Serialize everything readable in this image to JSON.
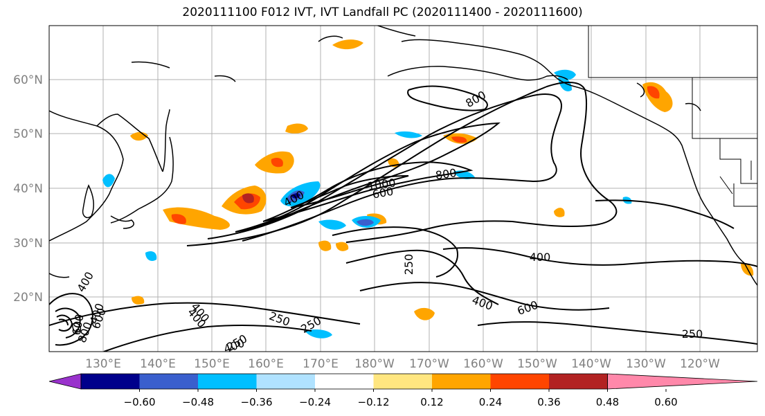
{
  "title": "2020111100 F012 IVT, IVT Landfall PC (2020111400 - 2020111600)",
  "axes": {
    "lat_labels": [
      "60°N",
      "50°N",
      "40°N",
      "30°N",
      "20°N"
    ],
    "lon_labels": [
      "130°E",
      "140°E",
      "150°E",
      "160°E",
      "170°E",
      "180°W",
      "170°W",
      "160°W",
      "150°W",
      "140°W",
      "130°W",
      "120°W"
    ],
    "tick_label_color": "#808080",
    "grid": true
  },
  "colorbar": {
    "tick_labels": [
      "−0.60",
      "−0.48",
      "−0.36",
      "−0.24",
      "−0.12",
      "0.12",
      "0.24",
      "0.36",
      "0.48",
      "0.60"
    ],
    "colors": [
      "#9932cc",
      "#00008b",
      "#3a5fcd",
      "#00bfff",
      "#b0e2ff",
      "#ffffff",
      "#ffe680",
      "#ffa500",
      "#ff4500",
      "#b22222",
      "#ff88aa"
    ]
  },
  "contour_labels": [
    "400",
    "600",
    "800",
    "1000",
    "800",
    "400",
    "250",
    "600",
    "250",
    "400",
    "250",
    "250",
    "400",
    "250",
    "400",
    "400",
    "600",
    "800",
    "600",
    "400",
    "400"
  ]
}
